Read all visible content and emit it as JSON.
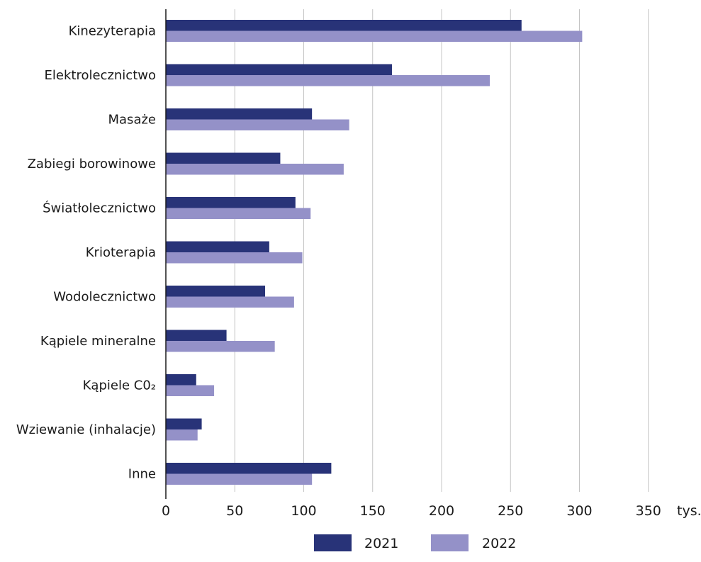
{
  "chart_data": {
    "type": "bar",
    "orientation": "horizontal",
    "categories": [
      "Kinezyterapia",
      "Elektrolecznictwo",
      "Masaże",
      "Zabiegi borowinowe",
      "Światłolecznictwo",
      "Krioterapia",
      "Wodolecznictwo",
      "Kąpiele mineralne",
      "Kąpiele C0₂",
      "Wziewanie (inhalacje)",
      "Inne"
    ],
    "series": [
      {
        "name": "2021",
        "color": "#283378",
        "values": [
          258,
          164,
          106,
          83,
          94,
          75,
          72,
          44,
          22,
          26,
          120
        ]
      },
      {
        "name": "2022",
        "color": "#9491c8",
        "values": [
          302,
          235,
          133,
          129,
          105,
          99,
          93,
          79,
          35,
          23,
          106
        ]
      }
    ],
    "title": "",
    "xlabel": "",
    "ylabel": "",
    "unit": "tys.",
    "xlim": [
      0,
      350
    ],
    "xticks": [
      0,
      50,
      100,
      150,
      200,
      250,
      300,
      350
    ],
    "grid": true,
    "legend": "bottom"
  }
}
